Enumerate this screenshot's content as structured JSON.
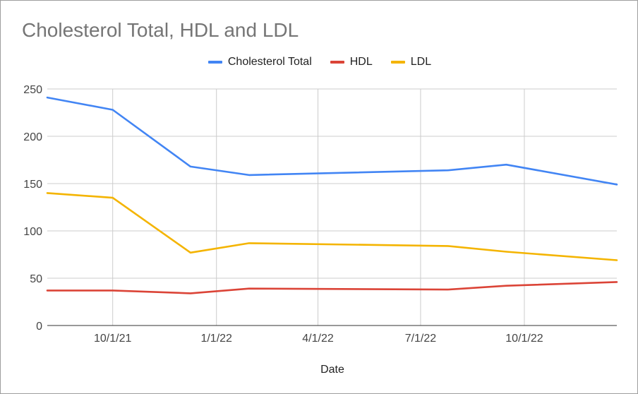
{
  "chart_data": {
    "type": "line",
    "title": "Cholesterol Total, HDL and LDL",
    "xlabel": "Date",
    "ylabel": "",
    "ylim": [
      0,
      250
    ],
    "yticks": [
      0,
      50,
      100,
      150,
      200,
      250
    ],
    "xlim": [
      "2021-08-04",
      "2022-12-22"
    ],
    "xticks": [
      {
        "date": "2021-10-01",
        "label": "10/1/21"
      },
      {
        "date": "2022-01-01",
        "label": "1/1/22"
      },
      {
        "date": "2022-04-01",
        "label": "4/1/22"
      },
      {
        "date": "2022-07-01",
        "label": "7/1/22"
      },
      {
        "date": "2022-10-01",
        "label": "10/1/22"
      }
    ],
    "legend_position": "top",
    "grid": true,
    "x": [
      "2021-08-04",
      "2021-10-01",
      "2021-12-09",
      "2022-01-30",
      "2022-07-25",
      "2022-09-15",
      "2022-12-22"
    ],
    "series": [
      {
        "name": "Cholesterol Total",
        "color": "#4285f4",
        "values": [
          241,
          228,
          168,
          159,
          164,
          170,
          149
        ]
      },
      {
        "name": "HDL",
        "color": "#db4437",
        "values": [
          37,
          37,
          34,
          39,
          38,
          42,
          46
        ]
      },
      {
        "name": "LDL",
        "color": "#f4b400",
        "values": [
          140,
          135,
          77,
          87,
          84,
          78,
          69
        ]
      }
    ]
  }
}
